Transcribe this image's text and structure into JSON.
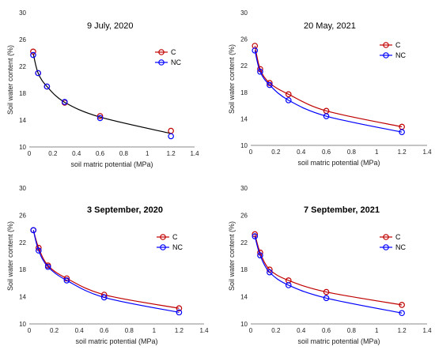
{
  "colors": {
    "C": "#c00000",
    "NC": "#0000ff",
    "trend": "#000000",
    "axis": "#888888",
    "text": "#222222"
  },
  "chart_data": [
    {
      "type": "scatter",
      "title": "9 July, 2020",
      "xlabel": "soil matric potential (MPa)",
      "ylabel": "Soil water content (%)",
      "xlim": [
        0,
        1.4
      ],
      "ylim": [
        10,
        30
      ],
      "xticks": [
        "0",
        "0.2",
        "0.4",
        "0.6",
        "0.8",
        "1",
        "1.2",
        "1.4"
      ],
      "yticks": [
        "10",
        "14",
        "18",
        "22",
        "26",
        "30"
      ],
      "xtick_values": [
        0,
        0.2,
        0.4,
        0.6,
        0.8,
        1.0,
        1.2,
        1.4
      ],
      "ytick_values": [
        10,
        14,
        18,
        22,
        26,
        30
      ],
      "legend_position": "top-right",
      "line_style": "black",
      "x": [
        0.033,
        0.075,
        0.15,
        0.3,
        0.6,
        1.2
      ],
      "series": [
        {
          "name": "C",
          "values": [
            24.2,
            21.0,
            19.0,
            16.6,
            14.6,
            12.4
          ]
        },
        {
          "name": "NC",
          "values": [
            23.7,
            21.0,
            19.0,
            16.7,
            14.3,
            11.6
          ]
        }
      ]
    },
    {
      "type": "scatter",
      "title": "20 May, 2021",
      "xlabel": "soil matric potential (MPa)",
      "ylabel": "Soil water content (%)",
      "xlim": [
        0,
        1.4
      ],
      "ylim": [
        10,
        30
      ],
      "xticks": [
        "0",
        "0.2",
        "0.4",
        "0.6",
        "0.8",
        "1",
        "1.2",
        "1.4"
      ],
      "yticks": [
        "10",
        "14",
        "18",
        "22",
        "26",
        "30"
      ],
      "xtick_values": [
        0,
        0.2,
        0.4,
        0.6,
        0.8,
        1.0,
        1.2,
        1.4
      ],
      "ytick_values": [
        10,
        14,
        18,
        22,
        26,
        30
      ],
      "legend_position": "top-right",
      "line_style": "series",
      "x": [
        0.033,
        0.075,
        0.15,
        0.3,
        0.6,
        1.2
      ],
      "series": [
        {
          "name": "C",
          "values": [
            25.0,
            21.5,
            19.4,
            17.7,
            15.2,
            12.8
          ]
        },
        {
          "name": "NC",
          "values": [
            24.3,
            21.1,
            19.1,
            16.8,
            14.4,
            12.0
          ]
        }
      ]
    },
    {
      "type": "scatter",
      "title": "3 September, 2020",
      "xlabel": "soil matric potential (MPa)",
      "ylabel": "Soil water content (%)",
      "xlim": [
        0,
        1.4
      ],
      "ylim": [
        10,
        30
      ],
      "xticks": [
        "0",
        "0.2",
        "0.4",
        "0.6",
        "0.8",
        "1",
        "1.2",
        "1.4"
      ],
      "yticks": [
        "10",
        "14",
        "18",
        "22",
        "26",
        "30"
      ],
      "xtick_values": [
        0,
        0.2,
        0.4,
        0.6,
        0.8,
        1.0,
        1.2,
        1.4
      ],
      "ytick_values": [
        10,
        14,
        18,
        22,
        26,
        30
      ],
      "legend_position": "top-right",
      "line_style": "series",
      "x": [
        0.033,
        0.075,
        0.15,
        0.3,
        0.6,
        1.2
      ],
      "series": [
        {
          "name": "C",
          "values": [
            23.8,
            21.2,
            18.6,
            16.7,
            14.3,
            12.3
          ]
        },
        {
          "name": "NC",
          "values": [
            23.8,
            20.8,
            18.4,
            16.4,
            13.9,
            11.7
          ]
        }
      ]
    },
    {
      "type": "scatter",
      "title": "7 September, 2021",
      "xlabel": "soil matric potential (MPa)",
      "ylabel": "Soil water content (%)",
      "xlim": [
        0,
        1.4
      ],
      "ylim": [
        10,
        30
      ],
      "xticks": [
        "0",
        "0.2",
        "0.4",
        "0.6",
        "0.8",
        "1",
        "1.2",
        "1.4"
      ],
      "yticks": [
        "10",
        "14",
        "18",
        "22",
        "26",
        "30"
      ],
      "xtick_values": [
        0,
        0.2,
        0.4,
        0.6,
        0.8,
        1.0,
        1.2,
        1.4
      ],
      "ytick_values": [
        10,
        14,
        18,
        22,
        26,
        30
      ],
      "legend_position": "top-right",
      "line_style": "series",
      "x": [
        0.033,
        0.075,
        0.15,
        0.3,
        0.6,
        1.2
      ],
      "series": [
        {
          "name": "C",
          "values": [
            23.2,
            20.5,
            18.0,
            16.4,
            14.7,
            12.8
          ]
        },
        {
          "name": "NC",
          "values": [
            22.9,
            20.1,
            17.6,
            15.7,
            13.8,
            11.6
          ]
        }
      ]
    }
  ]
}
